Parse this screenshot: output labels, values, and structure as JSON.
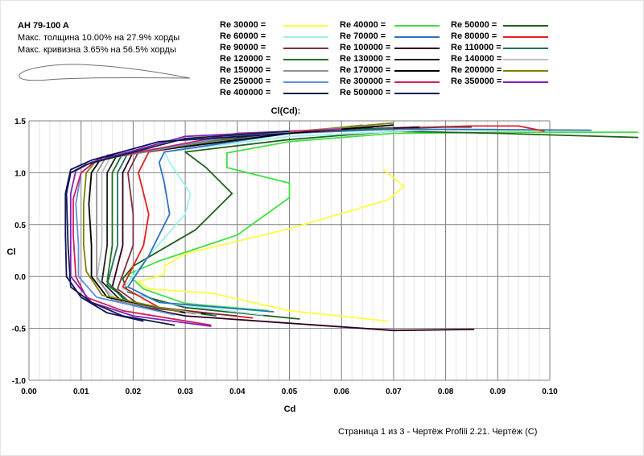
{
  "airfoil": {
    "name": "AH 79-100 A",
    "thickness": "Макс. толщина 10.00% на 27.9% хорды",
    "camber": "Макс. кривизна 3.65% на 56.5% хорды"
  },
  "footer": "Страница 1 из 3 - Чертёж Profili 2.21. Чертёж (C)",
  "chart_data": {
    "type": "line",
    "title": "Cl(Cd):",
    "xlabel": "Cd",
    "ylabel": "Cl",
    "xlim": [
      0,
      0.1
    ],
    "ylim": [
      -1.0,
      1.5
    ],
    "grid": true,
    "legend": "top",
    "xticks": [
      "0.00",
      "0.01",
      "0.02",
      "0.03",
      "0.04",
      "0.05",
      "0.06",
      "0.07",
      "0.08",
      "0.09",
      "0.10"
    ],
    "yticks": [
      "-1.0",
      "-0.5",
      "0.0",
      "0.5",
      "1.0",
      "1.5"
    ],
    "series": [
      {
        "name": "Re 30000 =",
        "color": "#ffff40",
        "points": [
          [
            0.069,
            -0.43
          ],
          [
            0.05,
            -0.33
          ],
          [
            0.035,
            -0.16
          ],
          [
            0.023,
            -0.12
          ],
          [
            0.021,
            -0.05
          ],
          [
            0.026,
            0.02
          ],
          [
            0.026,
            0.1
          ],
          [
            0.03,
            0.22
          ],
          [
            0.05,
            0.46
          ],
          [
            0.069,
            0.74
          ],
          [
            0.072,
            0.87
          ],
          [
            0.068,
            1.03
          ]
        ]
      },
      {
        "name": "Re 40000 =",
        "color": "#40e040",
        "points": [
          [
            0.046,
            -0.33
          ],
          [
            0.03,
            -0.26
          ],
          [
            0.022,
            -0.12
          ],
          [
            0.019,
            0.02
          ],
          [
            0.025,
            0.15
          ],
          [
            0.04,
            0.4
          ],
          [
            0.05,
            0.76
          ],
          [
            0.05,
            0.9
          ],
          [
            0.038,
            1.05
          ],
          [
            0.038,
            1.19
          ],
          [
            0.05,
            1.3
          ],
          [
            0.07,
            1.38
          ],
          [
            0.09,
            1.39
          ],
          [
            0.117,
            1.39
          ]
        ]
      },
      {
        "name": "Re 50000 =",
        "color": "#206020",
        "points": [
          [
            0.052,
            -0.41
          ],
          [
            0.03,
            -0.3
          ],
          [
            0.019,
            -0.15
          ],
          [
            0.018,
            -0.02
          ],
          [
            0.02,
            0.1
          ],
          [
            0.032,
            0.45
          ],
          [
            0.039,
            0.8
          ],
          [
            0.034,
            1.05
          ],
          [
            0.03,
            1.2
          ],
          [
            0.05,
            1.32
          ],
          [
            0.07,
            1.4
          ],
          [
            0.09,
            1.38
          ],
          [
            0.117,
            1.34
          ]
        ]
      },
      {
        "name": "Re 60000 =",
        "color": "#a0f0f0",
        "points": [
          [
            0.045,
            -0.37
          ],
          [
            0.025,
            -0.25
          ],
          [
            0.018,
            -0.12
          ],
          [
            0.023,
            0.2
          ],
          [
            0.03,
            0.6
          ],
          [
            0.031,
            0.8
          ],
          [
            0.027,
            1.1
          ],
          [
            0.026,
            1.2
          ],
          [
            0.05,
            1.35
          ],
          [
            0.08,
            1.42
          ],
          [
            0.09,
            1.42
          ]
        ]
      },
      {
        "name": "Re 70000 =",
        "color": "#3070c0",
        "points": [
          [
            0.047,
            -0.34
          ],
          [
            0.025,
            -0.25
          ],
          [
            0.019,
            -0.1
          ],
          [
            0.023,
            0.2
          ],
          [
            0.027,
            0.6
          ],
          [
            0.026,
            0.9
          ],
          [
            0.025,
            1.1
          ],
          [
            0.026,
            1.2
          ],
          [
            0.05,
            1.38
          ],
          [
            0.07,
            1.42
          ],
          [
            0.108,
            1.41
          ]
        ]
      },
      {
        "name": "Re 80000 =",
        "color": "#e02020",
        "points": [
          [
            0.043,
            -0.4
          ],
          [
            0.025,
            -0.3
          ],
          [
            0.018,
            -0.1
          ],
          [
            0.022,
            0.3
          ],
          [
            0.023,
            0.6
          ],
          [
            0.021,
            1.0
          ],
          [
            0.023,
            1.2
          ],
          [
            0.05,
            1.4
          ],
          [
            0.085,
            1.45
          ],
          [
            0.094,
            1.45
          ],
          [
            0.099,
            1.4
          ]
        ]
      },
      {
        "name": "Re 90000 =",
        "color": "#803040",
        "points": [
          [
            0.04,
            -0.38
          ],
          [
            0.022,
            -0.3
          ],
          [
            0.017,
            -0.12
          ],
          [
            0.02,
            0.3
          ],
          [
            0.02,
            0.6
          ],
          [
            0.019,
            1.0
          ],
          [
            0.021,
            1.2
          ],
          [
            0.05,
            1.4
          ],
          [
            0.08,
            1.44
          ],
          [
            0.085,
            1.44
          ]
        ]
      },
      {
        "name": "Re 100000 =",
        "color": "#300020",
        "points": [
          [
            0.0855,
            -0.51
          ],
          [
            0.07,
            -0.52
          ],
          [
            0.05,
            -0.45
          ],
          [
            0.03,
            -0.38
          ],
          [
            0.02,
            -0.28
          ],
          [
            0.016,
            -0.1
          ],
          [
            0.018,
            0.3
          ],
          [
            0.018,
            0.7
          ],
          [
            0.018,
            1.0
          ],
          [
            0.02,
            1.2
          ],
          [
            0.05,
            1.4
          ],
          [
            0.075,
            1.44
          ]
        ]
      },
      {
        "name": "Re 110000 =",
        "color": "#207060",
        "points": [
          [
            0.036,
            -0.38
          ],
          [
            0.02,
            -0.27
          ],
          [
            0.015,
            -0.08
          ],
          [
            0.017,
            0.3
          ],
          [
            0.017,
            0.7
          ],
          [
            0.017,
            1.0
          ],
          [
            0.019,
            1.19
          ],
          [
            0.05,
            1.39
          ],
          [
            0.07,
            1.43
          ]
        ]
      },
      {
        "name": "Re 120000 =",
        "color": "#207020",
        "points": [
          [
            0.035,
            -0.37
          ],
          [
            0.019,
            -0.26
          ],
          [
            0.015,
            -0.05
          ],
          [
            0.016,
            0.3
          ],
          [
            0.016,
            0.7
          ],
          [
            0.016,
            1.0
          ],
          [
            0.018,
            1.19
          ],
          [
            0.05,
            1.39
          ],
          [
            0.068,
            1.45
          ]
        ]
      },
      {
        "name": "Re 130000 =",
        "color": "#202020",
        "points": [
          [
            0.034,
            -0.36
          ],
          [
            0.018,
            -0.25
          ],
          [
            0.014,
            -0.05
          ],
          [
            0.015,
            0.3
          ],
          [
            0.015,
            0.7
          ],
          [
            0.015,
            1.0
          ],
          [
            0.017,
            1.18
          ],
          [
            0.05,
            1.38
          ],
          [
            0.066,
            1.44
          ]
        ]
      },
      {
        "name": "Re 140000 =",
        "color": "#c0c0c0",
        "points": [
          [
            0.033,
            -0.36
          ],
          [
            0.017,
            -0.24
          ],
          [
            0.013,
            -0.03
          ],
          [
            0.014,
            0.3
          ],
          [
            0.014,
            0.7
          ],
          [
            0.014,
            1.0
          ],
          [
            0.016,
            1.18
          ],
          [
            0.05,
            1.38
          ],
          [
            0.065,
            1.44
          ]
        ]
      },
      {
        "name": "Re 150000 =",
        "color": "#909090",
        "points": [
          [
            0.032,
            -0.36
          ],
          [
            0.016,
            -0.23
          ],
          [
            0.013,
            0.0
          ],
          [
            0.013,
            0.3
          ],
          [
            0.013,
            0.7
          ],
          [
            0.013,
            1.0
          ],
          [
            0.015,
            1.17
          ],
          [
            0.05,
            1.38
          ],
          [
            0.064,
            1.46
          ]
        ]
      },
      {
        "name": "Re 170000 =",
        "color": "#000000",
        "points": [
          [
            0.03,
            -0.35
          ],
          [
            0.015,
            -0.2
          ],
          [
            0.012,
            0.0
          ],
          [
            0.012,
            0.3
          ],
          [
            0.0115,
            0.7
          ],
          [
            0.012,
            1.0
          ],
          [
            0.014,
            1.15
          ],
          [
            0.05,
            1.38
          ],
          [
            0.07,
            1.46
          ]
        ]
      },
      {
        "name": "Re 200000 =",
        "color": "#808000",
        "points": [
          [
            0.029,
            -0.34
          ],
          [
            0.014,
            -0.18
          ],
          [
            0.011,
            0.05
          ],
          [
            0.0105,
            0.3
          ],
          [
            0.0105,
            0.7
          ],
          [
            0.011,
            1.0
          ],
          [
            0.013,
            1.12
          ],
          [
            0.04,
            1.35
          ],
          [
            0.07,
            1.48
          ]
        ]
      },
      {
        "name": "Re 250000 =",
        "color": "#6090e0",
        "points": [
          [
            0.028,
            -0.37
          ],
          [
            0.013,
            -0.2
          ],
          [
            0.0095,
            0.0
          ],
          [
            0.0095,
            0.3
          ],
          [
            0.009,
            0.7
          ],
          [
            0.01,
            1.0
          ],
          [
            0.013,
            1.12
          ],
          [
            0.04,
            1.36
          ],
          [
            0.06,
            1.43
          ]
        ]
      },
      {
        "name": "Re 300000 =",
        "color": "#d02060",
        "points": [
          [
            0.035,
            -0.47
          ],
          [
            0.018,
            -0.33
          ],
          [
            0.011,
            -0.2
          ],
          [
            0.009,
            0.0
          ],
          [
            0.0085,
            0.4
          ],
          [
            0.0085,
            0.75
          ],
          [
            0.01,
            1.0
          ],
          [
            0.013,
            1.12
          ],
          [
            0.04,
            1.38
          ],
          [
            0.06,
            1.42
          ]
        ]
      },
      {
        "name": "Re 350000 =",
        "color": "#8020c0",
        "points": [
          [
            0.035,
            -0.48
          ],
          [
            0.02,
            -0.38
          ],
          [
            0.012,
            -0.25
          ],
          [
            0.008,
            0.0
          ],
          [
            0.008,
            0.4
          ],
          [
            0.008,
            0.8
          ],
          [
            0.009,
            1.02
          ],
          [
            0.012,
            1.1
          ],
          [
            0.03,
            1.35
          ],
          [
            0.05,
            1.4
          ]
        ]
      },
      {
        "name": "Re 400000 =",
        "color": "#102040",
        "points": [
          [
            0.028,
            -0.47
          ],
          [
            0.018,
            -0.38
          ],
          [
            0.012,
            -0.25
          ],
          [
            0.008,
            -0.1
          ],
          [
            0.0075,
            0.3
          ],
          [
            0.0072,
            0.8
          ],
          [
            0.008,
            1.0
          ],
          [
            0.011,
            1.08
          ],
          [
            0.03,
            1.33
          ],
          [
            0.05,
            1.4
          ]
        ]
      },
      {
        "name": "Re 500000 =",
        "color": "#101060",
        "points": [
          [
            0.022,
            -0.43
          ],
          [
            0.015,
            -0.35
          ],
          [
            0.01,
            -0.2
          ],
          [
            0.0072,
            0.0
          ],
          [
            0.007,
            0.4
          ],
          [
            0.007,
            0.8
          ],
          [
            0.008,
            1.03
          ],
          [
            0.012,
            1.12
          ],
          [
            0.025,
            1.3
          ],
          [
            0.05,
            1.38
          ]
        ]
      }
    ]
  }
}
